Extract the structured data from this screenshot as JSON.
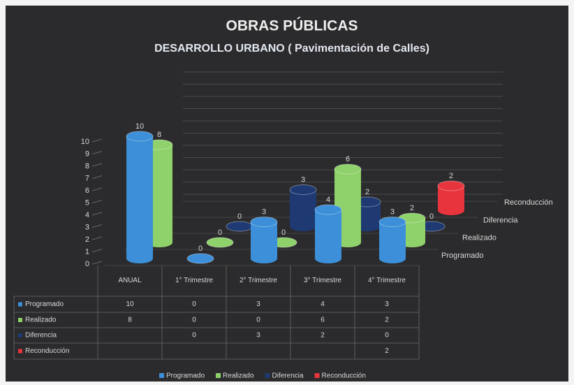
{
  "chart_data": {
    "type": "bar3d",
    "title": "OBRAS PÚBLICAS",
    "subtitle": "DESARROLLO URBANO ( Pavimentación de Calles)",
    "categories": [
      "ANUAL",
      "1° Trimestre",
      "2° Trimestre",
      "3° Trimestre",
      "4° Trimestre"
    ],
    "series": [
      {
        "name": "Programado",
        "color": "#3c8fd8",
        "values": [
          10,
          0,
          3,
          4,
          3
        ]
      },
      {
        "name": "Realizado",
        "color": "#8fd16a",
        "values": [
          8,
          0,
          0,
          6,
          2
        ]
      },
      {
        "name": "Diferencia",
        "color": "#1f3a72",
        "values": [
          null,
          0,
          3,
          2,
          0
        ]
      },
      {
        "name": "Reconducción",
        "color": "#e8343c",
        "values": [
          null,
          null,
          null,
          null,
          2
        ]
      }
    ],
    "ylim": [
      0,
      10
    ],
    "yticks": [
      0,
      1,
      2,
      3,
      4,
      5,
      6,
      7,
      8,
      9,
      10
    ],
    "grid": true,
    "data_table": true,
    "legend": "bottom"
  }
}
